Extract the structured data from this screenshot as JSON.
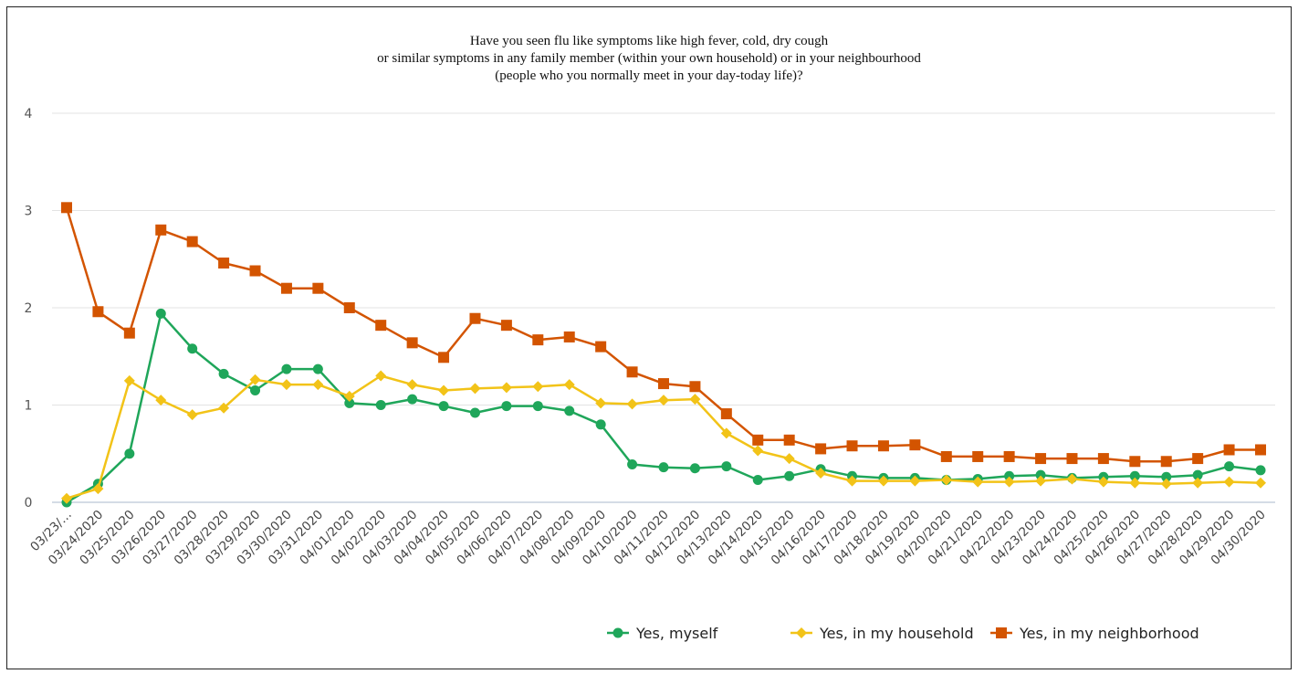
{
  "title_lines": [
    "Have you seen flu like symptoms like high fever, cold, dry cough",
    "or similar symptoms in any family member (within your own household) or in your neighbourhood",
    "(people who you normally meet in your day-today life)?"
  ],
  "chart_data": {
    "type": "line",
    "ylim": [
      0,
      4
    ],
    "y_ticks": [
      "0",
      "1",
      "2",
      "3",
      "4"
    ],
    "grid": true,
    "legend_position": "bottom-right",
    "x": [
      "03/23/…",
      "03/24/2020",
      "03/25/2020",
      "03/26/2020",
      "03/27/2020",
      "03/28/2020",
      "03/29/2020",
      "03/30/2020",
      "03/31/2020",
      "04/01/2020",
      "04/02/2020",
      "04/03/2020",
      "04/04/2020",
      "04/05/2020",
      "04/06/2020",
      "04/07/2020",
      "04/08/2020",
      "04/09/2020",
      "04/10/2020",
      "04/11/2020",
      "04/12/2020",
      "04/13/2020",
      "04/14/2020",
      "04/15/2020",
      "04/16/2020",
      "04/17/2020",
      "04/18/2020",
      "04/19/2020",
      "04/20/2020",
      "04/21/2020",
      "04/22/2020",
      "04/23/2020",
      "04/24/2020",
      "04/25/2020",
      "04/26/2020",
      "04/27/2020",
      "04/28/2020",
      "04/29/2020",
      "04/30/2020"
    ],
    "series": [
      {
        "name": "Yes, myself",
        "color": "#1fa65a",
        "marker": "circle",
        "values": [
          0.0,
          0.19,
          0.5,
          1.94,
          1.58,
          1.32,
          1.15,
          1.37,
          1.37,
          1.02,
          1.0,
          1.06,
          0.99,
          0.92,
          0.99,
          0.99,
          0.94,
          0.8,
          0.39,
          0.36,
          0.35,
          0.37,
          0.23,
          0.27,
          0.34,
          0.27,
          0.25,
          0.25,
          0.23,
          0.24,
          0.27,
          0.28,
          0.25,
          0.26,
          0.27,
          0.26,
          0.28,
          0.37,
          0.33
        ]
      },
      {
        "name": "Yes, in my household",
        "color": "#f2c318",
        "marker": "diamond",
        "values": [
          0.04,
          0.14,
          1.25,
          1.05,
          0.9,
          0.97,
          1.26,
          1.21,
          1.21,
          1.09,
          1.3,
          1.21,
          1.15,
          1.17,
          1.18,
          1.19,
          1.21,
          1.02,
          1.01,
          1.05,
          1.06,
          0.71,
          0.53,
          0.45,
          0.3,
          0.22,
          0.22,
          0.22,
          0.23,
          0.21,
          0.21,
          0.22,
          0.24,
          0.21,
          0.2,
          0.19,
          0.2,
          0.21,
          0.2
        ]
      },
      {
        "name": "Yes, in my neighborhood",
        "color": "#d35400",
        "marker": "square",
        "values": [
          3.03,
          1.96,
          1.74,
          2.8,
          2.68,
          2.46,
          2.38,
          2.2,
          2.2,
          2.0,
          1.82,
          1.64,
          1.49,
          1.89,
          1.82,
          1.67,
          1.7,
          1.6,
          1.34,
          1.22,
          1.19,
          0.91,
          0.64,
          0.64,
          0.55,
          0.58,
          0.58,
          0.59,
          0.47,
          0.47,
          0.47,
          0.45,
          0.45,
          0.45,
          0.42,
          0.42,
          0.45,
          0.54,
          0.54
        ]
      }
    ]
  }
}
